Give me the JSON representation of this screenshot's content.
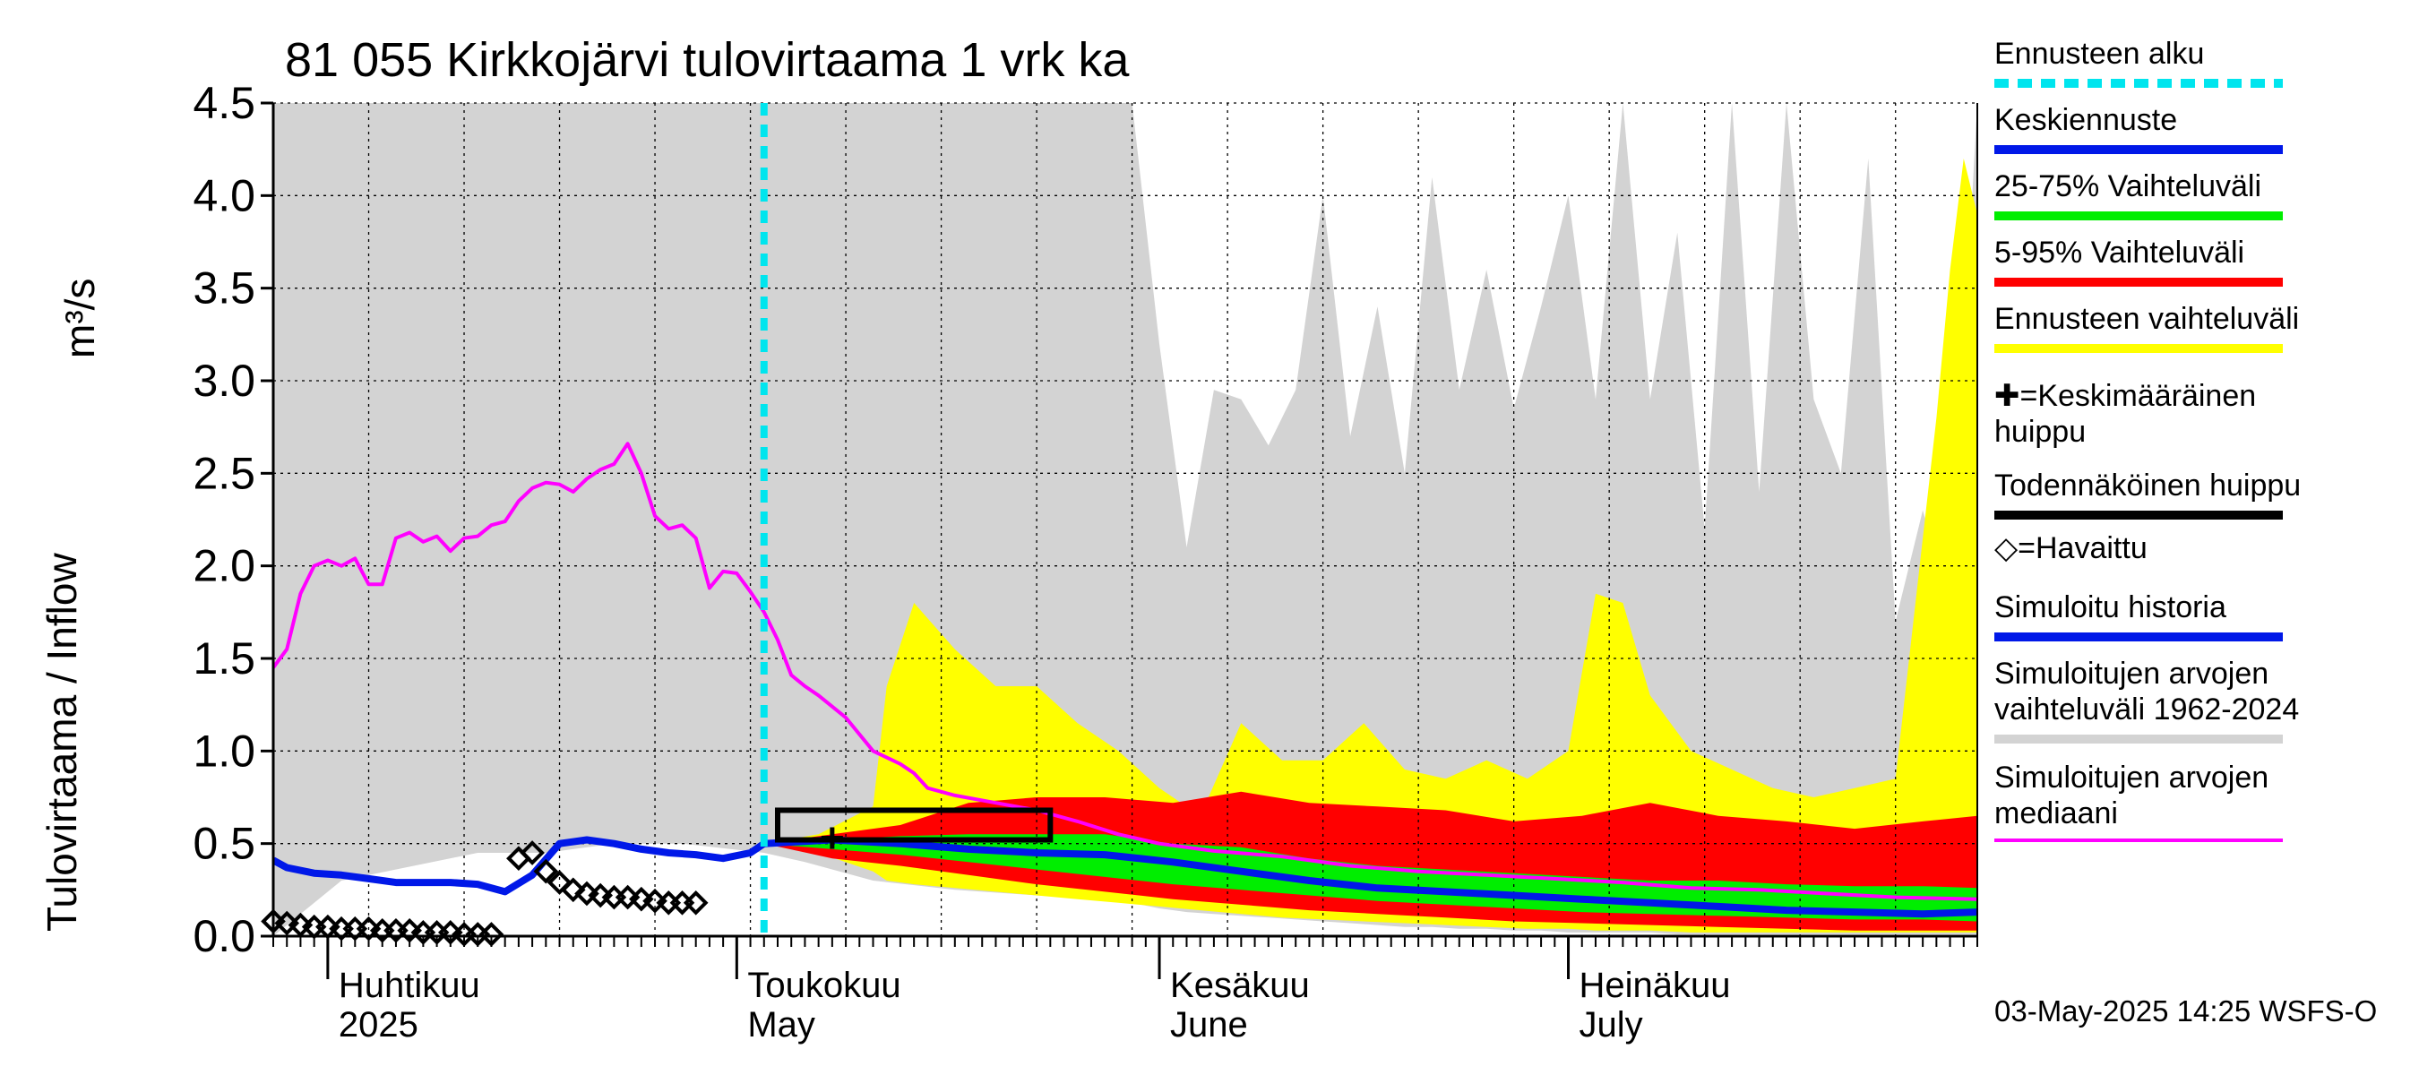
{
  "title": "81 055 Kirkkojärvi tulovirtaama 1 vrk ka",
  "footer": "03-May-2025 14:25 WSFS-O",
  "colors": {
    "hist_band": "#d3d3d3",
    "yellow": "#ffff00",
    "red": "#ff0000",
    "green": "#00ee00",
    "blue": "#0018e8",
    "magenta": "#ff00ff",
    "cyan": "#00e5ee",
    "black": "#000000"
  },
  "legend": [
    {
      "label": "Ennusteen alku",
      "color": "#00e5ee",
      "style": "dashed"
    },
    {
      "label": "Keskiennuste",
      "color": "#0018e8",
      "style": "solid"
    },
    {
      "label": "25-75% Vaihteluväli",
      "color": "#00ee00",
      "style": "solid"
    },
    {
      "label": "5-95% Vaihteluväli",
      "color": "#ff0000",
      "style": "solid"
    },
    {
      "label": "Ennusteen vaihteluväli",
      "color": "#ffff00",
      "style": "solid"
    },
    {
      "label": "✚=Keskimääräinen huippu",
      "color": "",
      "style": "none"
    },
    {
      "label": "Todennäköinen huippu",
      "color": "#000000",
      "style": "solid"
    },
    {
      "label": "◇=Havaittu",
      "color": "",
      "style": "none"
    },
    {
      "label": "Simuloitu historia",
      "color": "#0018e8",
      "style": "solid"
    },
    {
      "label": "Simuloitujen arvojen vaihteluväli 1962-2024",
      "color": "#d3d3d3",
      "style": "solid"
    },
    {
      "label": "Simuloitujen arvojen mediaani",
      "color": "#ff00ff",
      "style": "solid"
    }
  ],
  "chart_data": {
    "type": "area",
    "title": "81 055 Kirkkojärvi tulovirtaama 1 vrk ka",
    "ylabel": "Tulovirtaama / Inflow",
    "yunit": "m³/s",
    "ylim": [
      0,
      4.5
    ],
    "yticks": [
      "0.0",
      "0.5",
      "1.0",
      "1.5",
      "2.0",
      "2.5",
      "3.0",
      "3.5",
      "4.0",
      "4.5"
    ],
    "xlim": [
      "2025-03-28",
      "2025-07-31"
    ],
    "month_labels": [
      {
        "date": "2025-04-01",
        "fi": "Huhtikuu",
        "en": "2025"
      },
      {
        "date": "2025-05-01",
        "fi": "Toukokuu",
        "en": "May"
      },
      {
        "date": "2025-06-01",
        "fi": "Kesäkuu",
        "en": "June"
      },
      {
        "date": "2025-07-01",
        "fi": "Heinäkuu",
        "en": "July"
      }
    ],
    "grid": true,
    "forecast_start": "2025-05-03",
    "historical_range_1962_2024": {
      "dates": [
        "2025-03-28",
        "2025-04-02",
        "2025-04-12",
        "2025-04-17",
        "2025-04-22",
        "2025-04-27",
        "2025-05-03",
        "2025-05-06",
        "2025-05-11",
        "2025-05-17",
        "2025-05-23",
        "2025-05-27",
        "2025-05-30",
        "2025-06-01",
        "2025-06-03",
        "2025-06-05",
        "2025-06-07",
        "2025-06-09",
        "2025-06-11",
        "2025-06-13",
        "2025-06-15",
        "2025-06-17",
        "2025-06-19",
        "2025-06-21",
        "2025-06-23",
        "2025-06-25",
        "2025-06-27",
        "2025-06-29",
        "2025-07-01",
        "2025-07-03",
        "2025-07-05",
        "2025-07-07",
        "2025-07-09",
        "2025-07-11",
        "2025-07-13",
        "2025-07-15",
        "2025-07-17",
        "2025-07-19",
        "2025-07-21",
        "2025-07-23",
        "2025-07-25",
        "2025-07-27",
        "2025-07-29",
        "2025-07-31"
      ],
      "upper": [
        4.5,
        4.5,
        4.5,
        4.5,
        4.5,
        4.5,
        4.5,
        4.5,
        4.5,
        4.5,
        4.5,
        4.5,
        4.5,
        3.2,
        2.1,
        2.95,
        2.9,
        2.65,
        2.95,
        4.0,
        2.7,
        3.4,
        2.5,
        4.1,
        2.95,
        3.6,
        2.85,
        3.4,
        4.0,
        2.9,
        4.5,
        2.9,
        3.8,
        2.2,
        4.5,
        2.4,
        4.5,
        2.9,
        2.5,
        4.2,
        1.7,
        2.3,
        1.8,
        4.5
      ],
      "lower": [
        0.0,
        0.3,
        0.45,
        0.45,
        0.5,
        0.5,
        0.45,
        0.4,
        0.3,
        0.25,
        0.22,
        0.2,
        0.18,
        0.15,
        0.13,
        0.12,
        0.11,
        0.1,
        0.09,
        0.08,
        0.07,
        0.06,
        0.05,
        0.05,
        0.04,
        0.04,
        0.03,
        0.03,
        0.02,
        0.02,
        0.02,
        0.02,
        0.01,
        0.01,
        0.01,
        0.01,
        0.01,
        0.01,
        0.01,
        0.01,
        0.01,
        0.01,
        0.01,
        0.01
      ]
    },
    "forecast_range": {
      "dates": [
        "2025-05-03",
        "2025-05-07",
        "2025-05-11",
        "2025-05-12",
        "2025-05-14",
        "2025-05-17",
        "2025-05-20",
        "2025-05-23",
        "2025-05-26",
        "2025-05-29",
        "2025-06-01",
        "2025-06-04",
        "2025-06-07",
        "2025-06-10",
        "2025-06-13",
        "2025-06-16",
        "2025-06-19",
        "2025-06-22",
        "2025-06-25",
        "2025-06-28",
        "2025-07-01",
        "2025-07-03",
        "2025-07-05",
        "2025-07-07",
        "2025-07-10",
        "2025-07-13",
        "2025-07-16",
        "2025-07-19",
        "2025-07-22",
        "2025-07-25",
        "2025-07-28",
        "2025-07-29",
        "2025-07-30",
        "2025-07-31"
      ],
      "upper": [
        0.5,
        0.55,
        0.7,
        1.35,
        1.8,
        1.55,
        1.35,
        1.35,
        1.15,
        1.0,
        0.8,
        0.65,
        1.15,
        0.95,
        0.95,
        1.15,
        0.9,
        0.85,
        0.95,
        0.85,
        1.0,
        1.85,
        1.8,
        1.3,
        1.0,
        0.9,
        0.8,
        0.75,
        0.8,
        0.85,
        2.8,
        3.6,
        4.2,
        3.9
      ],
      "lower": [
        0.5,
        0.45,
        0.35,
        0.3,
        0.28,
        0.26,
        0.24,
        0.22,
        0.2,
        0.18,
        0.16,
        0.14,
        0.12,
        0.1,
        0.09,
        0.08,
        0.07,
        0.06,
        0.05,
        0.04,
        0.04,
        0.03,
        0.03,
        0.03,
        0.02,
        0.02,
        0.02,
        0.02,
        0.02,
        0.02,
        0.02,
        0.02,
        0.02,
        0.02
      ]
    },
    "range_5_95": {
      "dates": [
        "2025-05-03",
        "2025-05-08",
        "2025-05-13",
        "2025-05-18",
        "2025-05-23",
        "2025-05-28",
        "2025-06-02",
        "2025-06-07",
        "2025-06-12",
        "2025-06-17",
        "2025-06-22",
        "2025-06-27",
        "2025-07-02",
        "2025-07-07",
        "2025-07-12",
        "2025-07-17",
        "2025-07-22",
        "2025-07-27",
        "2025-07-31"
      ],
      "upper": [
        0.5,
        0.55,
        0.6,
        0.72,
        0.75,
        0.75,
        0.72,
        0.78,
        0.72,
        0.7,
        0.68,
        0.62,
        0.65,
        0.72,
        0.65,
        0.62,
        0.58,
        0.62,
        0.65
      ],
      "lower": [
        0.5,
        0.42,
        0.38,
        0.33,
        0.28,
        0.24,
        0.2,
        0.17,
        0.14,
        0.12,
        0.1,
        0.08,
        0.07,
        0.06,
        0.05,
        0.04,
        0.03,
        0.03,
        0.03
      ]
    },
    "range_25_75": {
      "dates": [
        "2025-05-03",
        "2025-05-08",
        "2025-05-13",
        "2025-05-18",
        "2025-05-23",
        "2025-05-28",
        "2025-06-02",
        "2025-06-07",
        "2025-06-12",
        "2025-06-17",
        "2025-06-22",
        "2025-06-27",
        "2025-07-02",
        "2025-07-07",
        "2025-07-12",
        "2025-07-17",
        "2025-07-22",
        "2025-07-27",
        "2025-07-31"
      ],
      "upper": [
        0.5,
        0.52,
        0.54,
        0.55,
        0.55,
        0.55,
        0.5,
        0.48,
        0.42,
        0.38,
        0.36,
        0.34,
        0.32,
        0.3,
        0.3,
        0.28,
        0.27,
        0.27,
        0.26
      ],
      "lower": [
        0.5,
        0.47,
        0.44,
        0.4,
        0.36,
        0.32,
        0.28,
        0.25,
        0.22,
        0.19,
        0.17,
        0.15,
        0.13,
        0.12,
        0.11,
        0.1,
        0.09,
        0.09,
        0.08
      ]
    },
    "median_forecast": {
      "dates": [
        "2025-05-03",
        "2025-05-08",
        "2025-05-13",
        "2025-05-18",
        "2025-05-23",
        "2025-05-28",
        "2025-06-02",
        "2025-06-07",
        "2025-06-12",
        "2025-06-17",
        "2025-06-22",
        "2025-06-27",
        "2025-07-02",
        "2025-07-07",
        "2025-07-12",
        "2025-07-17",
        "2025-07-22",
        "2025-07-27",
        "2025-07-31"
      ],
      "values": [
        0.5,
        0.52,
        0.5,
        0.47,
        0.45,
        0.44,
        0.4,
        0.35,
        0.3,
        0.26,
        0.24,
        0.22,
        0.2,
        0.18,
        0.16,
        0.14,
        0.13,
        0.12,
        0.13
      ]
    },
    "simulated_history": {
      "dates": [
        "2025-03-28",
        "2025-03-29",
        "2025-03-31",
        "2025-04-02",
        "2025-04-04",
        "2025-04-06",
        "2025-04-08",
        "2025-04-10",
        "2025-04-12",
        "2025-04-14",
        "2025-04-16",
        "2025-04-18",
        "2025-04-20",
        "2025-04-22",
        "2025-04-24",
        "2025-04-26",
        "2025-04-28",
        "2025-04-30",
        "2025-05-02",
        "2025-05-03"
      ],
      "values": [
        0.41,
        0.37,
        0.34,
        0.33,
        0.31,
        0.29,
        0.29,
        0.29,
        0.28,
        0.24,
        0.33,
        0.5,
        0.52,
        0.5,
        0.47,
        0.45,
        0.44,
        0.42,
        0.45,
        0.5
      ]
    },
    "simulated_median_1962_2024": {
      "dates": [
        "2025-03-28",
        "2025-03-29",
        "2025-03-30",
        "2025-03-31",
        "2025-04-01",
        "2025-04-02",
        "2025-04-03",
        "2025-04-04",
        "2025-04-05",
        "2025-04-06",
        "2025-04-07",
        "2025-04-08",
        "2025-04-09",
        "2025-04-10",
        "2025-04-11",
        "2025-04-12",
        "2025-04-13",
        "2025-04-14",
        "2025-04-15",
        "2025-04-16",
        "2025-04-17",
        "2025-04-18",
        "2025-04-19",
        "2025-04-20",
        "2025-04-21",
        "2025-04-22",
        "2025-04-23",
        "2025-04-24",
        "2025-04-25",
        "2025-04-26",
        "2025-04-27",
        "2025-04-28",
        "2025-04-29",
        "2025-04-30",
        "2025-05-01",
        "2025-05-02",
        "2025-05-03",
        "2025-05-04",
        "2025-05-05",
        "2025-05-06",
        "2025-05-07",
        "2025-05-09",
        "2025-05-11",
        "2025-05-13",
        "2025-05-14",
        "2025-05-15",
        "2025-05-17",
        "2025-05-20",
        "2025-05-23",
        "2025-05-26",
        "2025-05-29",
        "2025-06-01",
        "2025-06-05",
        "2025-06-10",
        "2025-06-15",
        "2025-06-20",
        "2025-06-25",
        "2025-06-30",
        "2025-07-05",
        "2025-07-10",
        "2025-07-15",
        "2025-07-20",
        "2025-07-25",
        "2025-07-31"
      ],
      "values": [
        1.45,
        1.55,
        1.85,
        2.0,
        2.03,
        2.0,
        2.04,
        1.9,
        1.9,
        2.15,
        2.18,
        2.13,
        2.16,
        2.08,
        2.15,
        2.16,
        2.22,
        2.24,
        2.35,
        2.42,
        2.45,
        2.44,
        2.4,
        2.47,
        2.52,
        2.55,
        2.66,
        2.5,
        2.27,
        2.2,
        2.22,
        2.15,
        1.88,
        1.97,
        1.96,
        1.86,
        1.75,
        1.6,
        1.41,
        1.35,
        1.3,
        1.18,
        1.0,
        0.93,
        0.88,
        0.8,
        0.76,
        0.72,
        0.68,
        0.62,
        0.55,
        0.5,
        0.46,
        0.43,
        0.38,
        0.35,
        0.33,
        0.31,
        0.29,
        0.26,
        0.25,
        0.23,
        0.21,
        0.2
      ]
    },
    "observed": {
      "dates": [
        "2025-03-28",
        "2025-03-29",
        "2025-03-30",
        "2025-03-31",
        "2025-04-01",
        "2025-04-02",
        "2025-04-03",
        "2025-04-04",
        "2025-04-05",
        "2025-04-06",
        "2025-04-07",
        "2025-04-08",
        "2025-04-09",
        "2025-04-10",
        "2025-04-11",
        "2025-04-12",
        "2025-04-13",
        "2025-04-15",
        "2025-04-16",
        "2025-04-17",
        "2025-04-18",
        "2025-04-19",
        "2025-04-20",
        "2025-04-21",
        "2025-04-22",
        "2025-04-23",
        "2025-04-24",
        "2025-04-25",
        "2025-04-26",
        "2025-04-27",
        "2025-04-28"
      ],
      "values": [
        0.08,
        0.07,
        0.06,
        0.05,
        0.05,
        0.04,
        0.04,
        0.04,
        0.03,
        0.03,
        0.03,
        0.02,
        0.02,
        0.02,
        0.01,
        0.01,
        0.01,
        0.42,
        0.45,
        0.35,
        0.29,
        0.25,
        0.23,
        0.22,
        0.21,
        0.21,
        0.2,
        0.19,
        0.18,
        0.18,
        0.18
      ]
    },
    "mean_peak": {
      "date": "2025-05-08",
      "value": 0.53
    },
    "probable_peak_box": {
      "date_start": "2025-05-04",
      "date_end": "2025-05-24",
      "low": 0.52,
      "high": 0.68
    }
  }
}
